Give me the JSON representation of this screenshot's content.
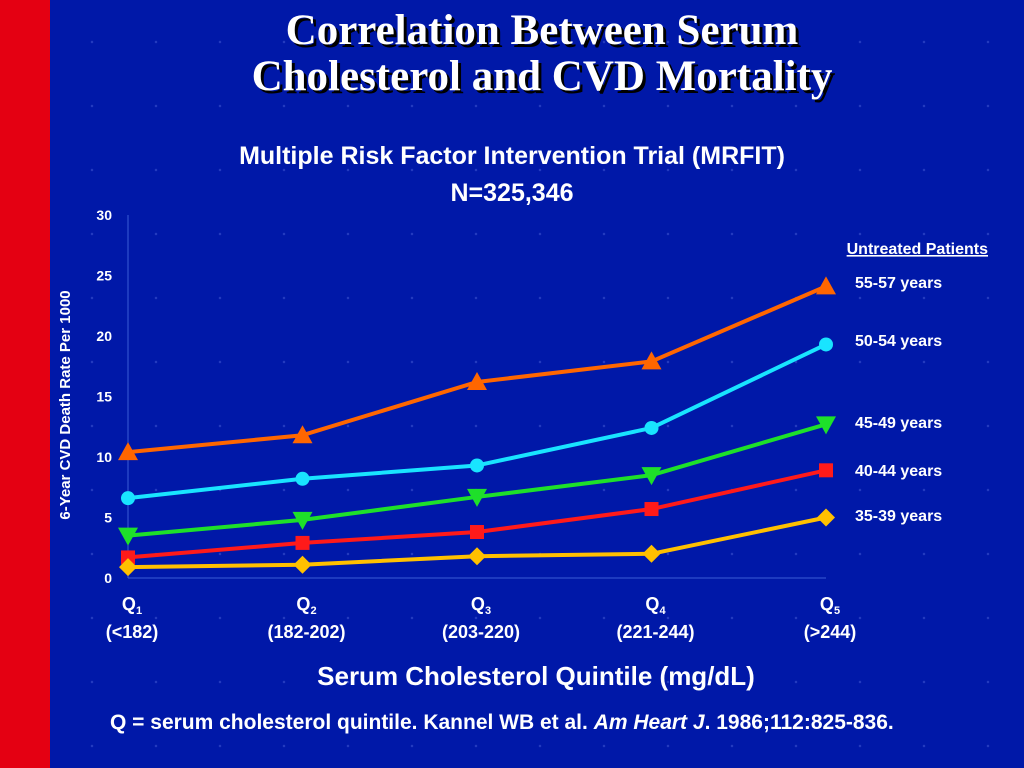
{
  "title_line1": "Correlation Between Serum",
  "title_line2": "Cholesterol and CVD Mortality",
  "subtitle_line1": "Multiple Risk Factor Intervention Trial (MRFIT)",
  "subtitle_line2": "N=325,346",
  "footnote": {
    "text": "Q = serum cholesterol quintile. Kannel WB et al. ",
    "journal": "Am Heart J",
    "rest": ". 1986;112:825-836."
  },
  "colors": {
    "background": "#0018a8",
    "left_bar": "#e40012"
  },
  "chart_data": {
    "type": "line",
    "ylabel": "6-Year CVD Death Rate Per 1000",
    "xlabel": "Serum Cholesterol Quintile (mg/dL)",
    "ylim": [
      0,
      30
    ],
    "yticks": [
      0,
      5,
      10,
      15,
      20,
      25,
      30
    ],
    "categories": [
      {
        "q": "Q",
        "sub": "1",
        "range": "(<182)"
      },
      {
        "q": "Q",
        "sub": "2",
        "range": "(182-202)"
      },
      {
        "q": "Q",
        "sub": "3",
        "range": "(203-220)"
      },
      {
        "q": "Q",
        "sub": "4",
        "range": "(221-244)"
      },
      {
        "q": "Q",
        "sub": "5",
        "range": "(>244)"
      }
    ],
    "legend_title": "Untreated Patients",
    "legend_position": "right",
    "series": [
      {
        "name": "55-57 years",
        "color": "#ff6600",
        "marker": "triangle-up",
        "values": [
          10.4,
          11.8,
          16.2,
          17.9,
          24.1
        ]
      },
      {
        "name": "50-54 years",
        "color": "#19e4ff",
        "marker": "circle",
        "values": [
          6.6,
          8.2,
          9.3,
          12.4,
          19.3
        ]
      },
      {
        "name": "45-49 years",
        "color": "#1ee02a",
        "marker": "triangle-down",
        "values": [
          3.5,
          4.8,
          6.7,
          8.5,
          12.7
        ]
      },
      {
        "name": "40-44 years",
        "color": "#ff1a1a",
        "marker": "square",
        "values": [
          1.7,
          2.9,
          3.8,
          5.7,
          8.9
        ]
      },
      {
        "name": "35-39 years",
        "color": "#ffc000",
        "marker": "diamond",
        "values": [
          0.9,
          1.1,
          1.8,
          2.0,
          5.0
        ]
      }
    ]
  }
}
